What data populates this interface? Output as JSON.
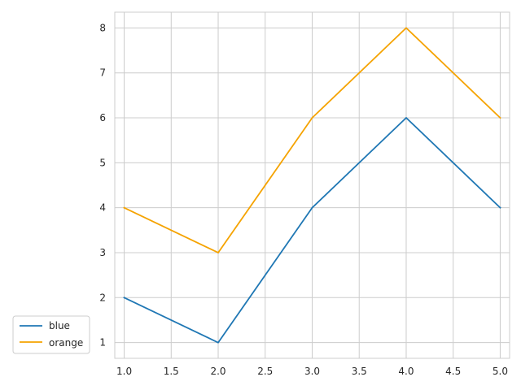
{
  "chart_data": {
    "type": "line",
    "title": "",
    "xlabel": "",
    "ylabel": "",
    "xlim": [
      0.9,
      5.1
    ],
    "ylim": [
      0.65,
      8.35
    ],
    "xticks": [
      "1.0",
      "1.5",
      "2.0",
      "2.5",
      "3.0",
      "3.5",
      "4.0",
      "4.5",
      "5.0"
    ],
    "yticks": [
      "1",
      "2",
      "3",
      "4",
      "5",
      "6",
      "7",
      "8"
    ],
    "grid": true,
    "legend_position": "outside-bottom-left",
    "x": [
      1,
      2,
      3,
      4,
      5
    ],
    "series": [
      {
        "name": "blue",
        "color": "#1f77b4",
        "values": [
          2,
          1,
          4,
          6,
          4
        ]
      },
      {
        "name": "orange",
        "color": "#f5a300",
        "values": [
          4,
          3,
          6,
          8,
          6
        ]
      }
    ]
  }
}
